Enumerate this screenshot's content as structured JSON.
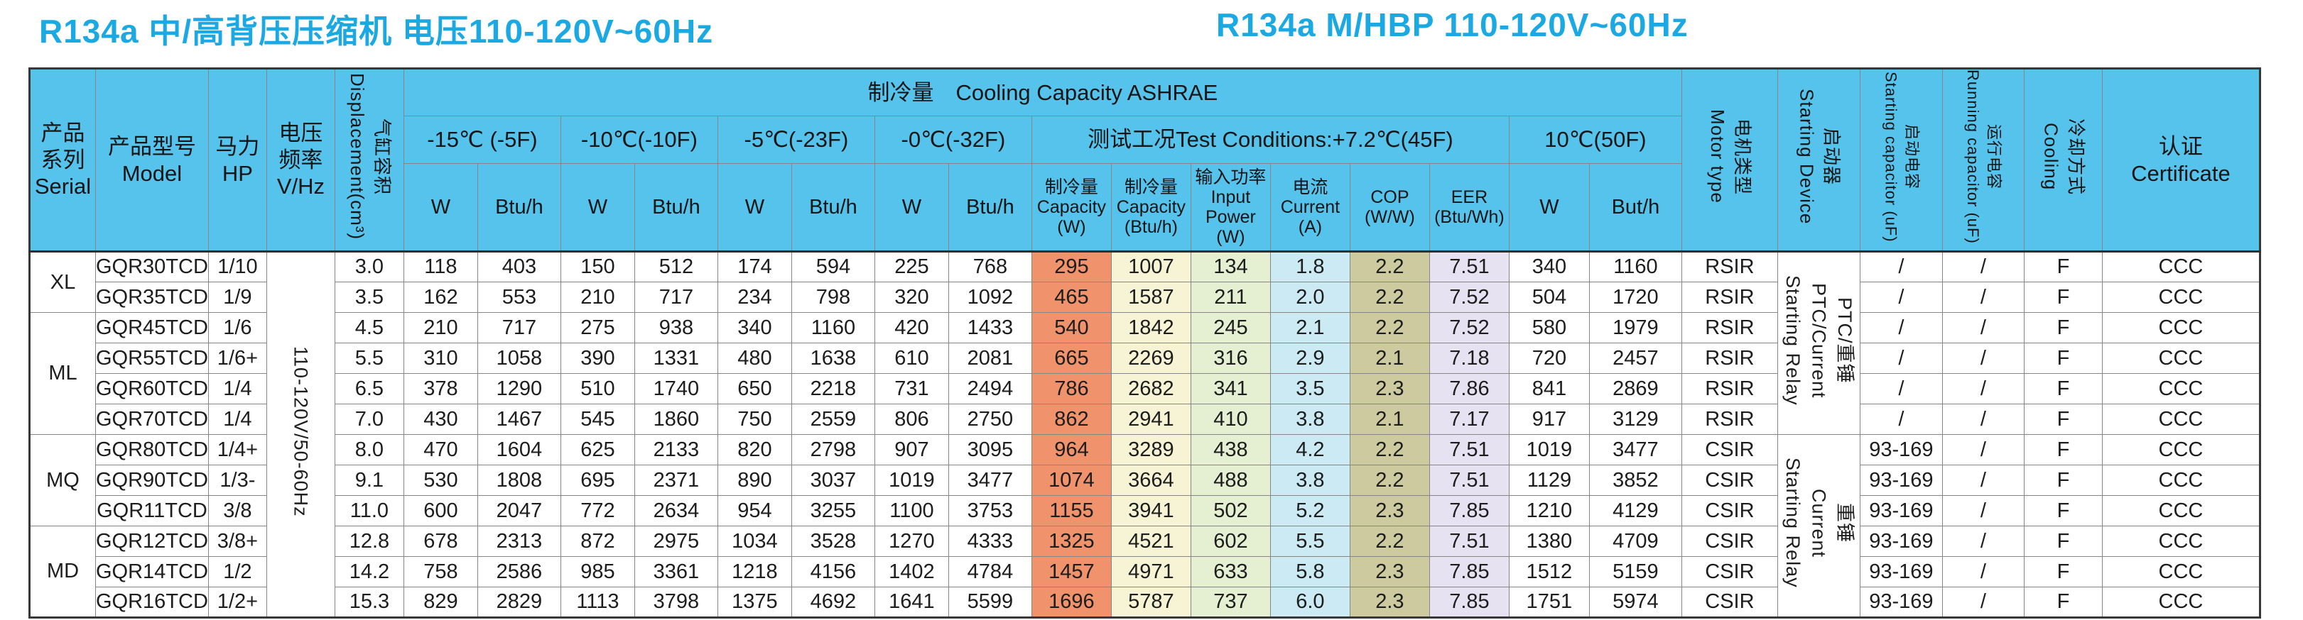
{
  "titles": {
    "left": "R134a 中/高背压压缩机  电压110-120V~60Hz",
    "right": "R134a M/HBP 110-120V~60Hz"
  },
  "colors": {
    "title": "#1ba9e3",
    "header_bg": "#55c3eb",
    "capacity_w": "#f0926c",
    "capacity_btu": "#f6f4d5",
    "input_power": "#e5f0d3",
    "current": "#cbeaf4",
    "cop": "#ccca9e",
    "eer": "#e6e2f2"
  },
  "header": {
    "serial": "产品\n系列\nSerial",
    "model": "产品型号\nModel",
    "hp": "马力HP",
    "vhz": "电压\n频率\nV/Hz",
    "displacement": "气缸容积\nDisplacement(cm³)",
    "ashrae": "制冷量　Cooling Capacity ASHRAE",
    "temp_groups": [
      "-15℃ (-5F)",
      "-10℃(-10F)",
      "-5℃(-23F)",
      "-0℃(-32F)"
    ],
    "w_label": "W",
    "btu_label": "Btu/h",
    "test_conditions": "测试工况Test Conditions:+7.2℃(45F)",
    "test_cols": [
      "制冷量\nCapacity\n(W)",
      "制冷量\nCapacity\n(Btu/h)",
      "输入功率\nInput\nPower\n(W)",
      "电流\nCurrent\n(A)",
      "COP\n(W/W)",
      "EER\n(Btu/Wh)"
    ],
    "temp10": "10℃(50F)",
    "temp10_w": "W",
    "temp10_btu": "But/h",
    "motor": "电机类型\nMotor type",
    "starting_device": "启动器\nStarting Device",
    "start_cap": "启动电容\nStarting capacitor (uF)",
    "run_cap": "运行电容\nRunning capacitor (uF)",
    "cooling": "冷却方式\nCooling",
    "certificate": "认证\nCertificate"
  },
  "voltage": {
    "label": "110-120V/50-60Hz",
    "span": 12
  },
  "serial_groups": [
    {
      "label": "XL",
      "span": 2
    },
    {
      "label": "ML",
      "span": 4
    },
    {
      "label": "MQ",
      "span": 3
    },
    {
      "label": "MD",
      "span": 3
    }
  ],
  "starting_device_groups": [
    {
      "label": "PTC/重锤\nPTC/Current\nStarting Relay",
      "span": 6
    },
    {
      "label": "重锤\nCurrent\nStarting Relay",
      "span": 6
    }
  ],
  "rows": [
    {
      "model": "GQR30TCD",
      "hp": "1/10",
      "disp": "3.0",
      "v": [
        "118",
        "403",
        "150",
        "512",
        "174",
        "594",
        "225",
        "768",
        "295",
        "1007",
        "134",
        "1.8",
        "2.2",
        "7.51",
        "340",
        "1160"
      ],
      "motor": "RSIR",
      "scap": "/",
      "rcap": "/",
      "cool": "F",
      "cert": "CCC"
    },
    {
      "model": "GQR35TCD",
      "hp": "1/9",
      "disp": "3.5",
      "v": [
        "162",
        "553",
        "210",
        "717",
        "234",
        "798",
        "320",
        "1092",
        "465",
        "1587",
        "211",
        "2.0",
        "2.2",
        "7.52",
        "504",
        "1720"
      ],
      "motor": "RSIR",
      "scap": "/",
      "rcap": "/",
      "cool": "F",
      "cert": "CCC"
    },
    {
      "model": "GQR45TCD",
      "hp": "1/6",
      "disp": "4.5",
      "v": [
        "210",
        "717",
        "275",
        "938",
        "340",
        "1160",
        "420",
        "1433",
        "540",
        "1842",
        "245",
        "2.1",
        "2.2",
        "7.52",
        "580",
        "1979"
      ],
      "motor": "RSIR",
      "scap": "/",
      "rcap": "/",
      "cool": "F",
      "cert": "CCC"
    },
    {
      "model": "GQR55TCD",
      "hp": "1/6+",
      "disp": "5.5",
      "v": [
        "310",
        "1058",
        "390",
        "1331",
        "480",
        "1638",
        "610",
        "2081",
        "665",
        "2269",
        "316",
        "2.9",
        "2.1",
        "7.18",
        "720",
        "2457"
      ],
      "motor": "RSIR",
      "scap": "/",
      "rcap": "/",
      "cool": "F",
      "cert": "CCC"
    },
    {
      "model": "GQR60TCD",
      "hp": "1/4",
      "disp": "6.5",
      "v": [
        "378",
        "1290",
        "510",
        "1740",
        "650",
        "2218",
        "731",
        "2494",
        "786",
        "2682",
        "341",
        "3.5",
        "2.3",
        "7.86",
        "841",
        "2869"
      ],
      "motor": "RSIR",
      "scap": "/",
      "rcap": "/",
      "cool": "F",
      "cert": "CCC"
    },
    {
      "model": "GQR70TCD",
      "hp": "1/4",
      "disp": "7.0",
      "v": [
        "430",
        "1467",
        "545",
        "1860",
        "750",
        "2559",
        "806",
        "2750",
        "862",
        "2941",
        "410",
        "3.8",
        "2.1",
        "7.17",
        "917",
        "3129"
      ],
      "motor": "RSIR",
      "scap": "/",
      "rcap": "/",
      "cool": "F",
      "cert": "CCC"
    },
    {
      "model": "GQR80TCD",
      "hp": "1/4+",
      "disp": "8.0",
      "v": [
        "470",
        "1604",
        "625",
        "2133",
        "820",
        "2798",
        "907",
        "3095",
        "964",
        "3289",
        "438",
        "4.2",
        "2.2",
        "7.51",
        "1019",
        "3477"
      ],
      "motor": "CSIR",
      "scap": "93-169",
      "rcap": "/",
      "cool": "F",
      "cert": "CCC"
    },
    {
      "model": "GQR90TCD",
      "hp": "1/3-",
      "disp": "9.1",
      "v": [
        "530",
        "1808",
        "695",
        "2371",
        "890",
        "3037",
        "1019",
        "3477",
        "1074",
        "3664",
        "488",
        "3.8",
        "2.2",
        "7.51",
        "1129",
        "3852"
      ],
      "motor": "CSIR",
      "scap": "93-169",
      "rcap": "/",
      "cool": "F",
      "cert": "CCC"
    },
    {
      "model": "GQR11TCD",
      "hp": "3/8",
      "disp": "11.0",
      "v": [
        "600",
        "2047",
        "772",
        "2634",
        "954",
        "3255",
        "1100",
        "3753",
        "1155",
        "3941",
        "502",
        "5.2",
        "2.3",
        "7.85",
        "1210",
        "4129"
      ],
      "motor": "CSIR",
      "scap": "93-169",
      "rcap": "/",
      "cool": "F",
      "cert": "CCC"
    },
    {
      "model": "GQR12TCD",
      "hp": "3/8+",
      "disp": "12.8",
      "v": [
        "678",
        "2313",
        "872",
        "2975",
        "1034",
        "3528",
        "1270",
        "4333",
        "1325",
        "4521",
        "602",
        "5.5",
        "2.2",
        "7.51",
        "1380",
        "4709"
      ],
      "motor": "CSIR",
      "scap": "93-169",
      "rcap": "/",
      "cool": "F",
      "cert": "CCC"
    },
    {
      "model": "GQR14TCD",
      "hp": "1/2",
      "disp": "14.2",
      "v": [
        "758",
        "2586",
        "985",
        "3361",
        "1218",
        "4156",
        "1402",
        "4784",
        "1457",
        "4971",
        "633",
        "5.8",
        "2.3",
        "7.85",
        "1512",
        "5159"
      ],
      "motor": "CSIR",
      "scap": "93-169",
      "rcap": "/",
      "cool": "F",
      "cert": "CCC"
    },
    {
      "model": "GQR16TCD",
      "hp": "1/2+",
      "disp": "15.3",
      "v": [
        "829",
        "2829",
        "1113",
        "3798",
        "1375",
        "4692",
        "1641",
        "5599",
        "1696",
        "5787",
        "737",
        "6.0",
        "2.3",
        "7.85",
        "1751",
        "5974"
      ],
      "motor": "CSIR",
      "scap": "93-169",
      "rcap": "/",
      "cool": "F",
      "cert": "CCC"
    }
  ]
}
